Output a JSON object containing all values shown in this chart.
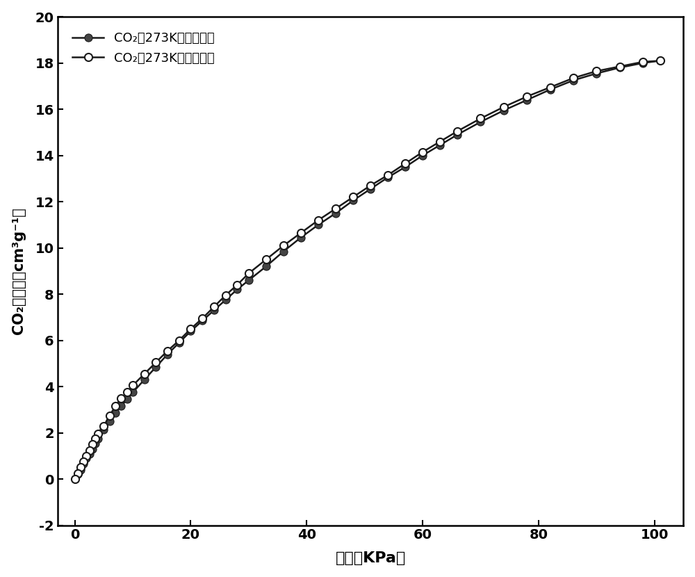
{
  "adsorption_x": [
    0.0,
    0.5,
    1.0,
    1.5,
    2.0,
    2.5,
    3.0,
    3.5,
    4.0,
    5.0,
    6.0,
    7.0,
    8.0,
    9.0,
    10.0,
    12.0,
    14.0,
    16.0,
    18.0,
    20.0,
    22.0,
    24.0,
    26.0,
    28.0,
    30.0,
    33.0,
    36.0,
    39.0,
    42.0,
    45.0,
    48.0,
    51.0,
    54.0,
    57.0,
    60.0,
    63.0,
    66.0,
    70.0,
    74.0,
    78.0,
    82.0,
    86.0,
    90.0,
    94.0,
    98.0,
    101.0
  ],
  "adsorption_y": [
    0.0,
    0.2,
    0.4,
    0.65,
    0.9,
    1.1,
    1.3,
    1.55,
    1.75,
    2.15,
    2.5,
    2.85,
    3.15,
    3.45,
    3.75,
    4.3,
    4.85,
    5.4,
    5.9,
    6.4,
    6.85,
    7.3,
    7.75,
    8.2,
    8.6,
    9.2,
    9.85,
    10.45,
    11.0,
    11.5,
    12.05,
    12.55,
    13.05,
    13.5,
    14.0,
    14.45,
    14.9,
    15.45,
    15.95,
    16.4,
    16.85,
    17.25,
    17.55,
    17.8,
    18.0,
    18.1
  ],
  "desorption_x": [
    101.0,
    98.0,
    94.0,
    90.0,
    86.0,
    82.0,
    78.0,
    74.0,
    70.0,
    66.0,
    63.0,
    60.0,
    57.0,
    54.0,
    51.0,
    48.0,
    45.0,
    42.0,
    39.0,
    36.0,
    33.0,
    30.0,
    28.0,
    26.0,
    24.0,
    22.0,
    20.0,
    18.0,
    16.0,
    14.0,
    12.0,
    10.0,
    9.0,
    8.0,
    7.0,
    6.0,
    5.0,
    4.0,
    3.5,
    3.0,
    2.5,
    2.0,
    1.5,
    1.0,
    0.5,
    0.0
  ],
  "desorption_y": [
    18.1,
    18.05,
    17.85,
    17.65,
    17.35,
    16.95,
    16.55,
    16.1,
    15.6,
    15.05,
    14.6,
    14.15,
    13.65,
    13.15,
    12.7,
    12.2,
    11.7,
    11.2,
    10.65,
    10.1,
    9.5,
    8.9,
    8.4,
    7.95,
    7.45,
    6.95,
    6.5,
    6.0,
    5.55,
    5.05,
    4.55,
    4.05,
    3.75,
    3.5,
    3.15,
    2.75,
    2.3,
    1.95,
    1.75,
    1.5,
    1.25,
    1.0,
    0.75,
    0.5,
    0.25,
    0.0
  ],
  "xlim": [
    -3,
    105
  ],
  "ylim": [
    -2,
    20
  ],
  "xticks": [
    0,
    20,
    40,
    60,
    80,
    100
  ],
  "yticks": [
    -2,
    0,
    2,
    4,
    6,
    8,
    10,
    12,
    14,
    16,
    18,
    20
  ],
  "xlabel": "压力（KPa）",
  "ylabel": "CO₂吸附量（cm³g⁻¹）",
  "legend_adsorption": "CO₂在273K下的吸附量",
  "legend_desorption": "CO₂在273K下的解吸量",
  "line_color": "#1a1a1a",
  "marker_size": 8,
  "linewidth": 1.8
}
